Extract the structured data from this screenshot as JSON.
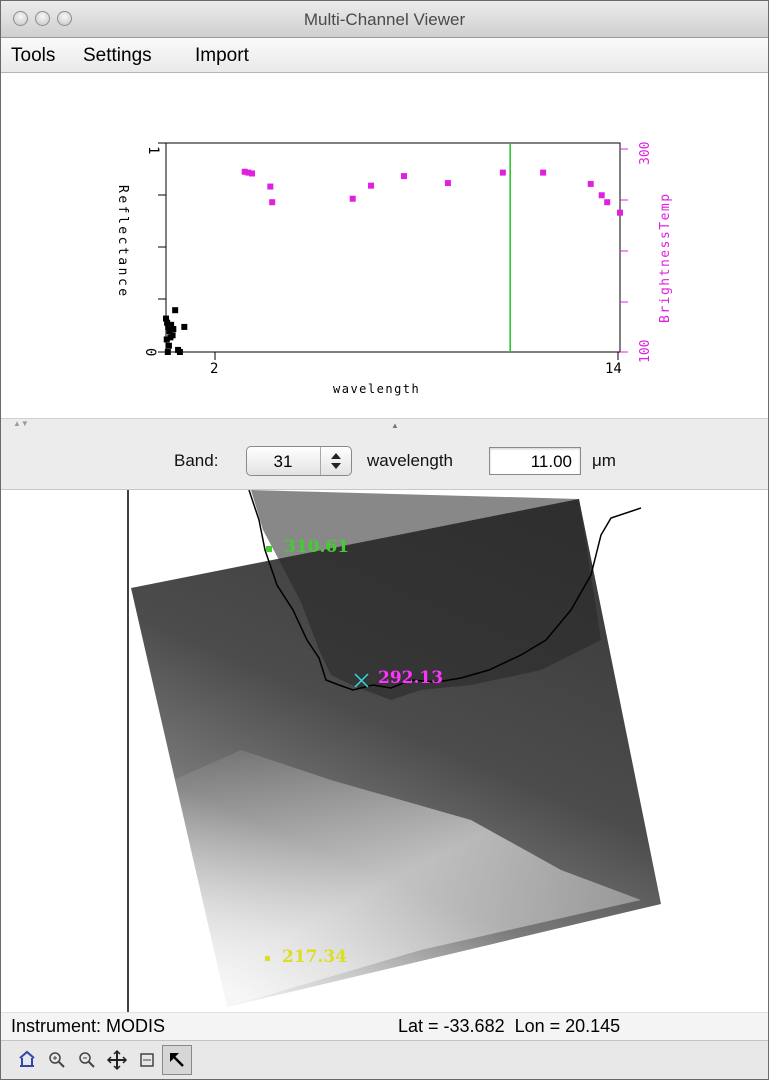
{
  "window": {
    "title": "Multi-Channel Viewer"
  },
  "menu": [
    "Tools",
    "Settings",
    "Import"
  ],
  "chart_data": {
    "type": "scatter",
    "title": "",
    "xlabel": "wavelength",
    "ylabel": "Reflectance",
    "y2label": "BrightnessTemp",
    "xlim": [
      1.6,
      14
    ],
    "ylim": [
      0,
      1
    ],
    "y2lim": [
      100,
      340
    ],
    "x_ticks": [
      "2",
      "14"
    ],
    "y_ticks": [
      "0",
      "1"
    ],
    "y2_ticks": [
      "100",
      "300"
    ],
    "grid": false,
    "series": [
      {
        "axis": "left",
        "color": "#000000",
        "x": [
          1.6,
          1.63,
          1.66,
          1.7,
          1.74,
          1.78,
          1.62,
          1.68,
          1.72,
          1.8,
          1.85,
          1.65,
          1.93,
          1.98,
          2.1
        ],
        "y": [
          0.16,
          0.14,
          0.12,
          0.1,
          0.13,
          0.08,
          0.06,
          0.03,
          0.07,
          0.11,
          0.2,
          0.0,
          0.01,
          0.0,
          0.12
        ]
      },
      {
        "axis": "right",
        "color": "#e020e0",
        "x": [
          3.75,
          3.85,
          3.95,
          4.45,
          4.5,
          6.7,
          7.2,
          8.1,
          9.3,
          10.8,
          11.9,
          13.2,
          13.5,
          13.65,
          14.0
        ],
        "y": [
          307,
          306,
          305,
          290,
          272,
          276,
          291,
          302,
          294,
          306,
          306,
          293,
          280,
          272,
          260
        ]
      }
    ],
    "cursor_line": {
      "x": 11.0,
      "color": "#22c022"
    }
  },
  "band_control": {
    "label": "Band:",
    "value": "31",
    "wavelength_label": "wavelength",
    "wavelength_value": "11.00",
    "unit": "μm"
  },
  "map": {
    "probes": [
      {
        "value": "310.61",
        "color": "#44cc33"
      },
      {
        "value": "292.13",
        "color": "#ff33ff"
      },
      {
        "value": "217.34",
        "color": "#dddd22"
      }
    ],
    "cursor_color": "#33dddd"
  },
  "status": {
    "instrument": "Instrument: MODIS",
    "latlon": "Lat = -33.682  Lon = 20.145"
  },
  "toolbar": {
    "tools": [
      "home-icon",
      "zoom-in-icon",
      "zoom-out-icon",
      "pan-icon",
      "zoom-box-icon",
      "pointer-icon"
    ],
    "selected": "pointer-icon"
  }
}
